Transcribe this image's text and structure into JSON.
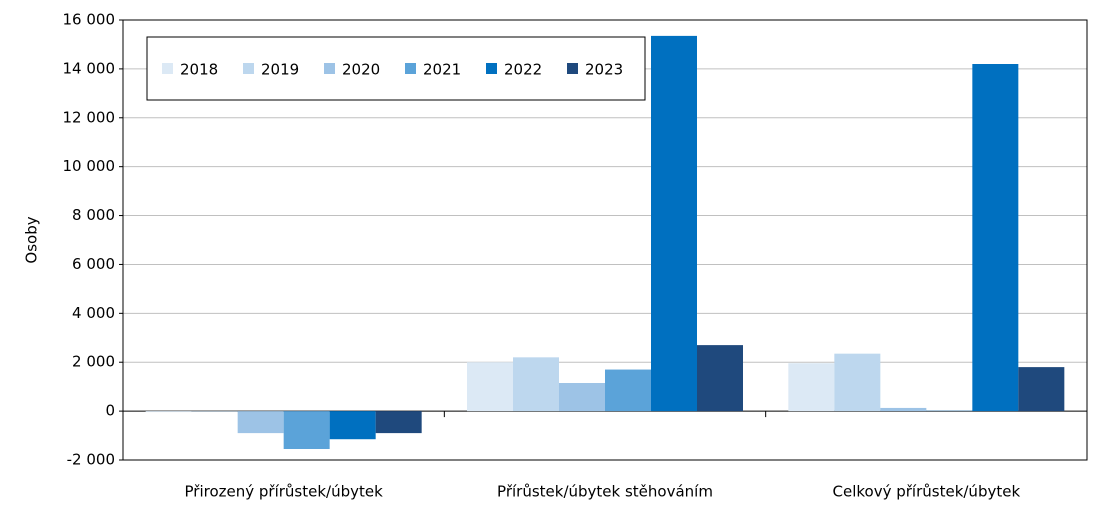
{
  "chart_data": {
    "type": "bar",
    "y_label": "Osoby",
    "categories": [
      "Přirozený přírůstek/úbytek",
      "Přírůstek/úbytek stěhováním",
      "Celkový přírůstek/úbytek"
    ],
    "series": [
      {
        "name": "2018",
        "color": "#dce9f5",
        "values": [
          -40,
          2000,
          1960
        ]
      },
      {
        "name": "2019",
        "color": "#bdd7ee",
        "values": [
          -20,
          2200,
          2350
        ]
      },
      {
        "name": "2020",
        "color": "#9dc3e6",
        "values": [
          -900,
          1150,
          130
        ]
      },
      {
        "name": "2021",
        "color": "#5ba3d9",
        "values": [
          -1550,
          1700,
          20
        ]
      },
      {
        "name": "2022",
        "color": "#0070c0",
        "values": [
          -1150,
          15350,
          14200
        ]
      },
      {
        "name": "2023",
        "color": "#1f497d",
        "values": [
          -900,
          2700,
          1800
        ]
      }
    ],
    "ylim": [
      -2000,
      16000
    ],
    "yticks": [
      {
        "value": -2000,
        "label": "-2 000"
      },
      0,
      {
        "value": 2000,
        "label": "2 000"
      },
      {
        "value": 4000,
        "label": "4 000"
      },
      {
        "value": 6000,
        "label": "6 000"
      },
      {
        "value": 8000,
        "label": "8 000"
      },
      {
        "value": 10000,
        "label": "10 000"
      },
      {
        "value": 12000,
        "label": "12 000"
      },
      {
        "value": 14000,
        "label": "14 000"
      },
      {
        "value": 16000,
        "label": "16 000"
      }
    ],
    "grid": true,
    "legend": "top-left"
  }
}
